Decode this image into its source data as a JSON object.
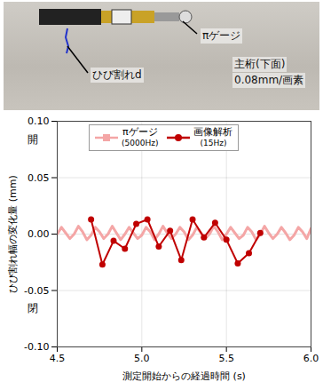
{
  "photo": {
    "labels": [
      "πゲージ",
      "ひび割れd",
      "主桁(下面)",
      "0.08mm/画素"
    ]
  },
  "chart_data": {
    "type": "line",
    "x_label": "測定開始からの経過時間 (s)",
    "y_label": "ひび割れ幅の変化量 (mm)",
    "y_annotations": {
      "top": "開",
      "bottom": "閉"
    },
    "xlim": [
      4.5,
      6.0
    ],
    "xticks": [
      4.5,
      {
        "value": 5.0,
        "label": "5.0"
      },
      5.5,
      {
        "value": 6.0,
        "label": "6.0"
      }
    ],
    "ylim": [
      -0.1,
      0.1
    ],
    "yticks": [
      {
        "value": -0.1,
        "label": "-0.10"
      },
      -0.05,
      {
        "value": 0,
        "label": "0.00"
      },
      0.05,
      {
        "value": 0.1,
        "label": "0.10"
      }
    ],
    "grid": true,
    "legend": "top",
    "series": [
      {
        "name": "πゲージ (5000Hz)",
        "color": "#f4a6a6",
        "marker": "square",
        "line_style": "solid",
        "x": [
          4.5,
          4.525,
          4.55,
          4.575,
          4.6,
          4.625,
          4.65,
          4.675,
          4.7,
          4.725,
          4.75,
          4.775,
          4.8,
          4.825,
          4.85,
          4.875,
          4.9,
          4.925,
          4.95,
          4.975,
          5.0,
          5.025,
          5.05,
          5.075,
          5.1,
          5.125,
          5.15,
          5.175,
          5.2,
          5.225,
          5.25,
          5.275,
          5.3,
          5.325,
          5.35,
          5.375,
          5.4,
          5.425,
          5.45,
          5.475,
          5.5,
          5.525,
          5.55,
          5.575,
          5.6,
          5.625,
          5.65,
          5.675,
          5.7,
          5.725,
          5.75,
          5.775,
          5.8,
          5.825,
          5.85,
          5.875,
          5.9,
          5.925,
          5.95,
          5.975,
          6.0
        ],
        "values": [
          0.0,
          0.006,
          0.001,
          -0.004,
          0.0,
          0.007,
          0.002,
          -0.005,
          -0.001,
          0.006,
          0.002,
          -0.004,
          0.0,
          0.007,
          0.001,
          -0.005,
          0.0,
          0.006,
          0.001,
          -0.004,
          -0.001,
          0.006,
          0.002,
          -0.005,
          0.0,
          0.007,
          0.001,
          -0.004,
          0.0,
          0.006,
          0.002,
          -0.005,
          -0.001,
          0.006,
          0.001,
          -0.004,
          0.0,
          0.007,
          0.002,
          -0.005,
          0.0,
          0.006,
          0.001,
          -0.004,
          -0.001,
          0.006,
          0.002,
          -0.005,
          0.0,
          0.007,
          0.001,
          -0.004,
          0.0,
          0.006,
          0.001,
          -0.005,
          -0.001,
          0.006,
          0.002,
          -0.004,
          0.005
        ]
      },
      {
        "name": "画像解析 (15Hz)",
        "color": "#c00000",
        "marker": "circle",
        "line_style": "solid",
        "x": [
          4.7,
          4.767,
          4.833,
          4.9,
          4.967,
          5.033,
          5.1,
          5.167,
          5.233,
          5.3,
          5.367,
          5.433,
          5.5,
          5.567,
          5.633,
          5.7
        ],
        "values": [
          0.013,
          -0.027,
          -0.006,
          -0.013,
          0.009,
          0.013,
          -0.011,
          0.003,
          -0.023,
          0.013,
          -0.003,
          0.01,
          -0.005,
          -0.026,
          -0.017,
          0.001
        ]
      }
    ]
  }
}
